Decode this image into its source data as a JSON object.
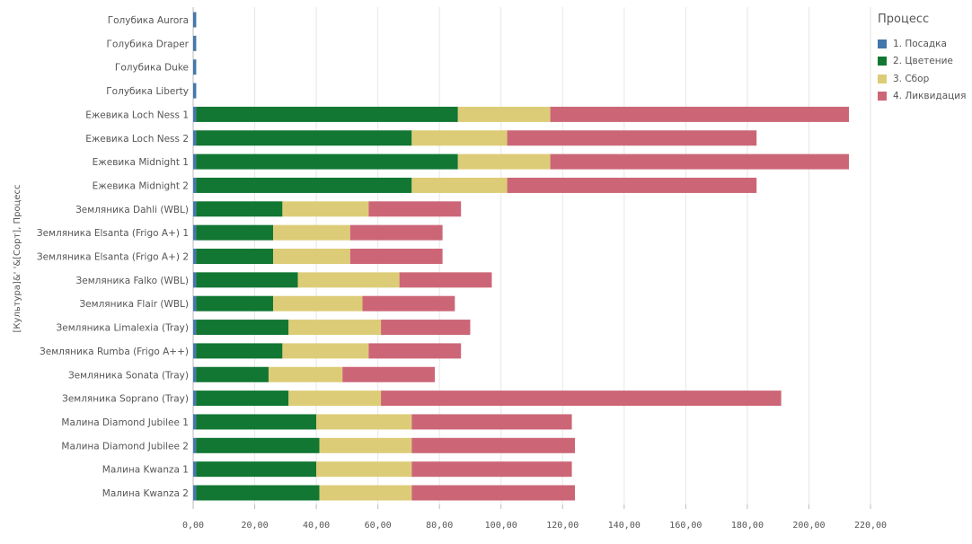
{
  "chart_data": {
    "type": "bar",
    "orientation": "horizontal",
    "stacked": true,
    "ylabel": "[Культура]&' '&[Сорт], Процесс",
    "xlabel": "",
    "xlim": [
      0,
      220
    ],
    "x_ticks": [
      "0,00",
      "20,00",
      "40,00",
      "60,00",
      "80,00",
      "100,00",
      "120,00",
      "140,00",
      "160,00",
      "180,00",
      "200,00",
      "220,00"
    ],
    "grid": true,
    "legend": {
      "title": "Процесс",
      "position": "right"
    },
    "categories": [
      "Голубика Aurora",
      "Голубика Draper",
      "Голубика Duke",
      "Голубика Liberty",
      "Ежевика Loch Ness 1",
      "Ежевика Loch Ness 2",
      "Ежевика Midnight 1",
      "Ежевика Midnight 2",
      "Земляника Dahli (WBL)",
      "Земляника Elsanta (Frigo A+) 1",
      "Земляника Elsanta (Frigo A+) 2",
      "Земляника Falko (WBL)",
      "Земляника Flair (WBL)",
      "Земляника Limalexia (Tray)",
      "Земляника Rumba (Frigo A++)",
      "Земляника Sonata (Tray)",
      "Земляника Soprano (Tray)",
      "Малина Diamond Jubilee 1",
      "Малина Diamond Jubilee 2",
      "Малина Kwanza 1",
      "Малина Kwanza 2"
    ],
    "series": [
      {
        "name": "1. Посадка",
        "color": "#4477aa",
        "values": [
          1,
          1,
          1,
          1,
          1,
          1,
          1,
          1,
          1,
          1,
          1,
          1,
          1,
          1,
          1,
          1,
          1,
          1,
          1,
          1,
          1
        ]
      },
      {
        "name": "2. Цветение",
        "color": "#117733",
        "values": [
          0,
          0,
          0,
          0,
          85,
          70,
          85,
          70,
          28,
          25,
          25,
          33,
          25,
          30,
          28,
          23.5,
          30,
          39,
          40,
          39,
          40
        ]
      },
      {
        "name": "3. Сбор",
        "color": "#ddcc77",
        "values": [
          0,
          0,
          0,
          0,
          30,
          31,
          30,
          31,
          28,
          25,
          25,
          33,
          29,
          30,
          28,
          24,
          30,
          31,
          30,
          31,
          30
        ]
      },
      {
        "name": "4. Ликвидация",
        "color": "#cc6677",
        "values": [
          0,
          0,
          0,
          0,
          97,
          81,
          97,
          81,
          30,
          30,
          30,
          30,
          30,
          29,
          30,
          30,
          130,
          52,
          53,
          52,
          53
        ]
      }
    ]
  }
}
